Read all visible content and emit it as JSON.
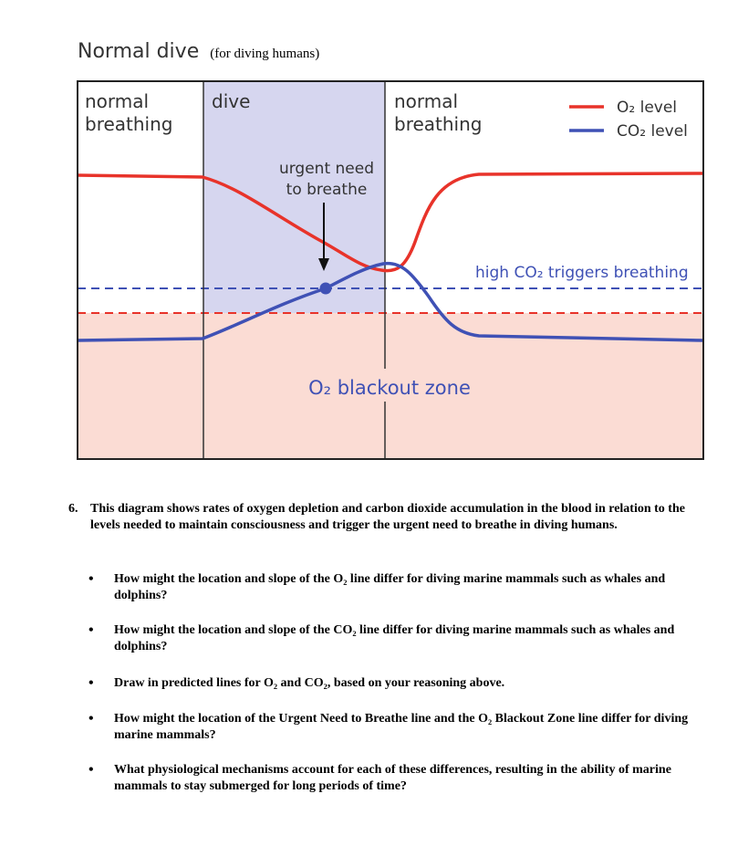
{
  "diagram": {
    "title": "Normal dive",
    "subtitle": "(for diving humans)",
    "phase_labels": {
      "normal_breathing_1": [
        "normal",
        "breathing"
      ],
      "dive": "dive",
      "normal_breathing_2": [
        "normal",
        "breathing"
      ]
    },
    "legend": {
      "o2": "O₂ level",
      "co2": "CO₂ level"
    },
    "annotations": {
      "urgent_need": [
        "urgent need",
        "to breathe"
      ],
      "high_co2": "high CO₂ triggers breathing",
      "blackout_zone": "O₂ blackout zone"
    },
    "colors": {
      "o2_line": "#e8332a",
      "co2_line": "#3f51b5",
      "dive_shade": "#d6d6ef",
      "blackout_shade": "#fbdcd4"
    }
  },
  "question": {
    "number": "6.",
    "stem": "This diagram shows rates of oxygen depletion and carbon dioxide accumulation in the blood in relation to the levels needed to maintain consciousness and trigger the urgent need to breathe in diving humans.",
    "bullets": [
      "How might the location and slope of the O₂ line differ for diving marine mammals such as whales and dolphins?",
      "How might the location and slope of the CO₂ line differ for diving marine mammals such as whales and dolphins?",
      "Draw in predicted lines for O₂ and CO₂, based on your reasoning above.",
      "How might the location of the Urgent Need to Breathe line and the O₂ Blackout Zone line differ for diving marine mammals?",
      "What physiological mechanisms account for each of these differences, resulting in the ability of marine mammals to stay submerged for long periods of time?"
    ]
  }
}
